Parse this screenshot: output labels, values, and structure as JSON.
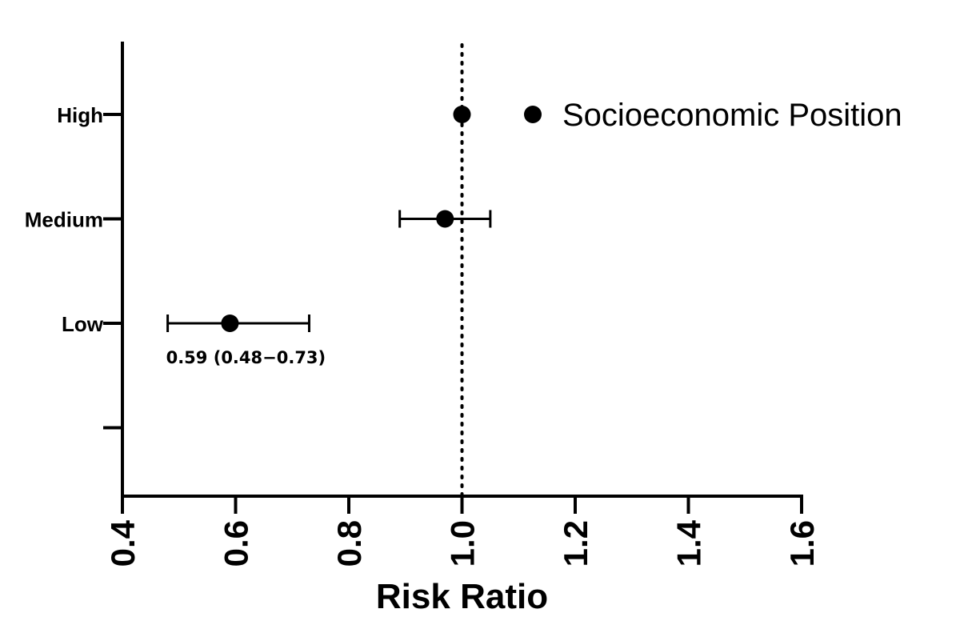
{
  "chart_data": {
    "type": "scatter",
    "subtype": "forest-plot",
    "title": "",
    "xlabel": "Risk Ratio",
    "ylabel": "",
    "xlim": [
      0.4,
      1.6
    ],
    "xticks": [
      "0.4",
      "0.6",
      "0.8",
      "1.0",
      "1.2",
      "1.4",
      "1.6"
    ],
    "xtick_values": [
      0.4,
      0.6,
      0.8,
      1.0,
      1.2,
      1.4,
      1.6
    ],
    "categories": [
      "High",
      "Medium",
      "Low",
      ""
    ],
    "reference_line": 1.0,
    "series": [
      {
        "name": "Socioeconomic Position",
        "color": "#000000",
        "points": [
          {
            "category": "High",
            "value": 1.0,
            "lower": 1.0,
            "upper": 1.0
          },
          {
            "category": "Medium",
            "value": 0.97,
            "lower": 0.89,
            "upper": 1.05
          },
          {
            "category": "Low",
            "value": 0.59,
            "lower": 0.48,
            "upper": 0.73
          }
        ]
      }
    ],
    "legend": {
      "placement": "top-right",
      "entries": [
        "Socioeconomic Position"
      ]
    },
    "annotations": [
      {
        "category": "Low",
        "text": "0.59 (0.48−0.73)"
      }
    ],
    "grid": false
  }
}
